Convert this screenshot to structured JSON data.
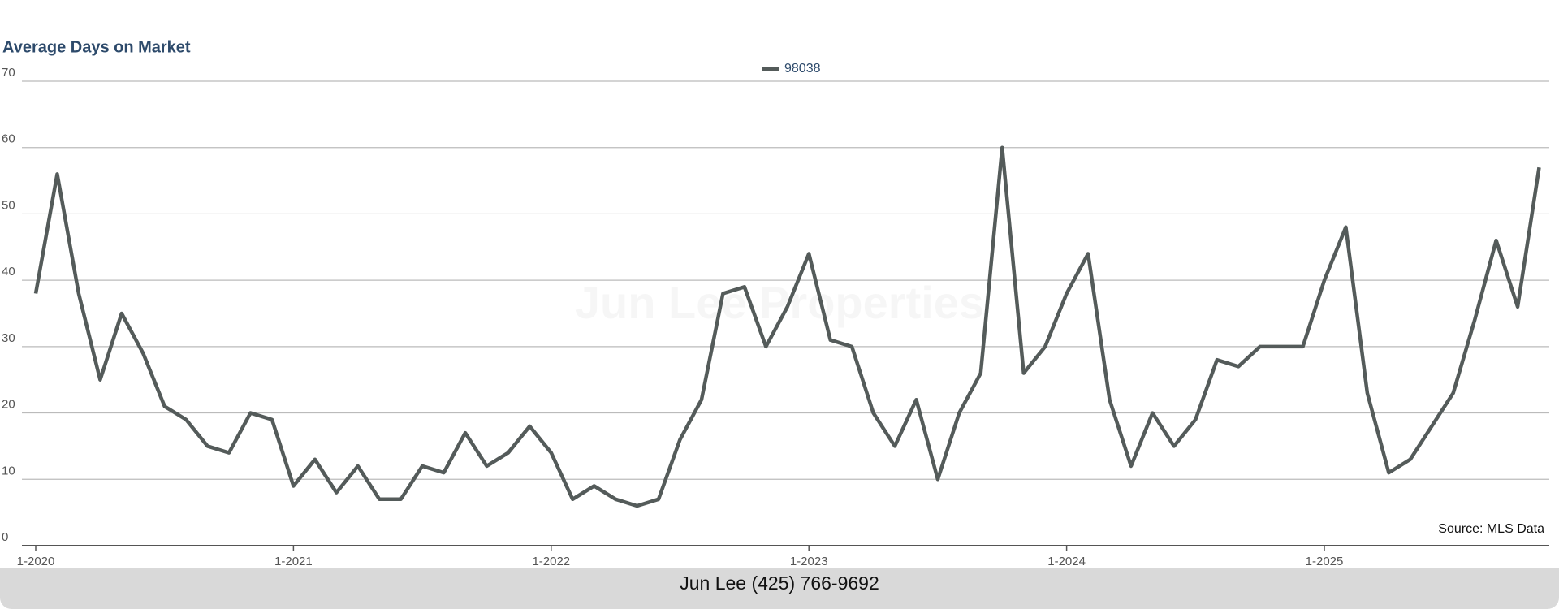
{
  "chart_data": {
    "type": "line",
    "title": "Average Days on Market",
    "categories": [
      "1-2020",
      null,
      null,
      null,
      null,
      null,
      null,
      null,
      null,
      null,
      null,
      null,
      "1-2021",
      null,
      null,
      null,
      null,
      null,
      null,
      null,
      null,
      null,
      null,
      null,
      "1-2022",
      null,
      null,
      null,
      null,
      null,
      null,
      null,
      null,
      null,
      null,
      null,
      "1-2023",
      null,
      null,
      null,
      null,
      null,
      null,
      null,
      null,
      null,
      null,
      null,
      "1-2024",
      null,
      null,
      null,
      null,
      null,
      null,
      null,
      null,
      null,
      null,
      null,
      "1-2025",
      null,
      null,
      null,
      null,
      null,
      null,
      null,
      null,
      null,
      null
    ],
    "series": [
      {
        "name": "98038",
        "color": "#545b5a",
        "values": [
          38,
          56,
          38,
          25,
          35,
          29,
          21,
          19,
          15,
          14,
          20,
          19,
          9,
          13,
          8,
          12,
          7,
          7,
          12,
          11,
          17,
          12,
          14,
          18,
          14,
          7,
          9,
          7,
          6,
          7,
          16,
          22,
          38,
          39,
          30,
          36,
          44,
          31,
          30,
          20,
          15,
          22,
          10,
          20,
          26,
          60,
          26,
          30,
          38,
          44,
          22,
          12,
          20,
          15,
          19,
          28,
          27,
          30,
          30,
          30,
          40,
          48,
          23,
          11,
          13,
          18,
          23,
          34,
          46,
          36,
          57
        ]
      }
    ],
    "ylim": [
      0,
      70
    ],
    "yticks": [
      0,
      10,
      20,
      30,
      40,
      50,
      60,
      70
    ],
    "grid": true,
    "legend": "top",
    "source": "Source: MLS Data",
    "watermark": "Jun Lee Properties"
  },
  "footer": "Jun Lee (425) 766-9692"
}
